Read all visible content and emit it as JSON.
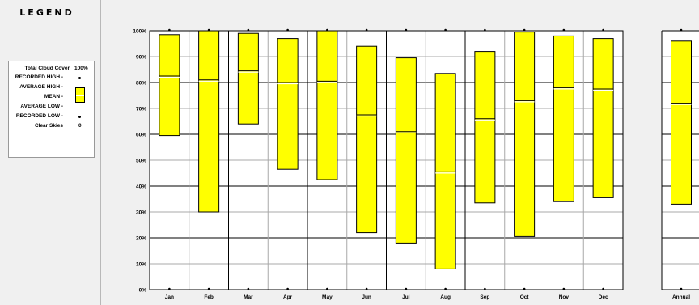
{
  "legend": {
    "title": "LEGEND",
    "rows": {
      "total": {
        "label": "Total Cloud Cover",
        "value": "100%"
      },
      "recorded_high": {
        "label": "RECORDED HIGH -"
      },
      "average_high": {
        "label": "AVERAGE HIGH -"
      },
      "mean": {
        "label": "MEAN -"
      },
      "average_low": {
        "label": "AVERAGE LOW -"
      },
      "recorded_low": {
        "label": "RECORDED LOW -"
      },
      "clear": {
        "label": "Clear Skies",
        "value": "0"
      }
    }
  },
  "colors": {
    "bar_fill": "#ffff00",
    "bar_border": "#000000",
    "grid": "#000000",
    "background": "#ffffff"
  },
  "chart_data": {
    "type": "bar",
    "subtype": "floating range bars with mean line",
    "categories": [
      "Jan",
      "Feb",
      "Mar",
      "Apr",
      "May",
      "Jun",
      "Jul",
      "Aug",
      "Sep",
      "Oct",
      "Nov",
      "Dec",
      "Annual"
    ],
    "series": [
      {
        "name": "AVERAGE LOW",
        "values": [
          59.5,
          30,
          64,
          46.5,
          42.5,
          22,
          18,
          8,
          33.5,
          20.5,
          34,
          35.5,
          33
        ]
      },
      {
        "name": "AVERAGE HIGH",
        "values": [
          98.5,
          100,
          99,
          97,
          100,
          94,
          89.5,
          83.5,
          92,
          99.5,
          98,
          97,
          96
        ]
      },
      {
        "name": "MEAN",
        "values": [
          82.5,
          81,
          84.5,
          80,
          80.5,
          67.5,
          61,
          45.5,
          66,
          73,
          78,
          77.5,
          72
        ]
      },
      {
        "name": "RECORDED HIGH",
        "values": [
          100,
          100,
          100,
          100,
          100,
          100,
          100,
          100,
          100,
          100,
          100,
          100,
          100
        ]
      },
      {
        "name": "RECORDED LOW",
        "values": [
          0,
          0,
          0,
          0,
          0,
          0,
          0,
          0,
          0,
          0,
          0,
          0,
          0
        ]
      }
    ],
    "ylim": [
      0,
      100
    ],
    "yticks": [
      "0%",
      "10%",
      "20%",
      "30%",
      "40%",
      "50%",
      "60%",
      "70%",
      "80%",
      "90%",
      "100%"
    ],
    "grid": true,
    "legend_position": "left panel"
  }
}
